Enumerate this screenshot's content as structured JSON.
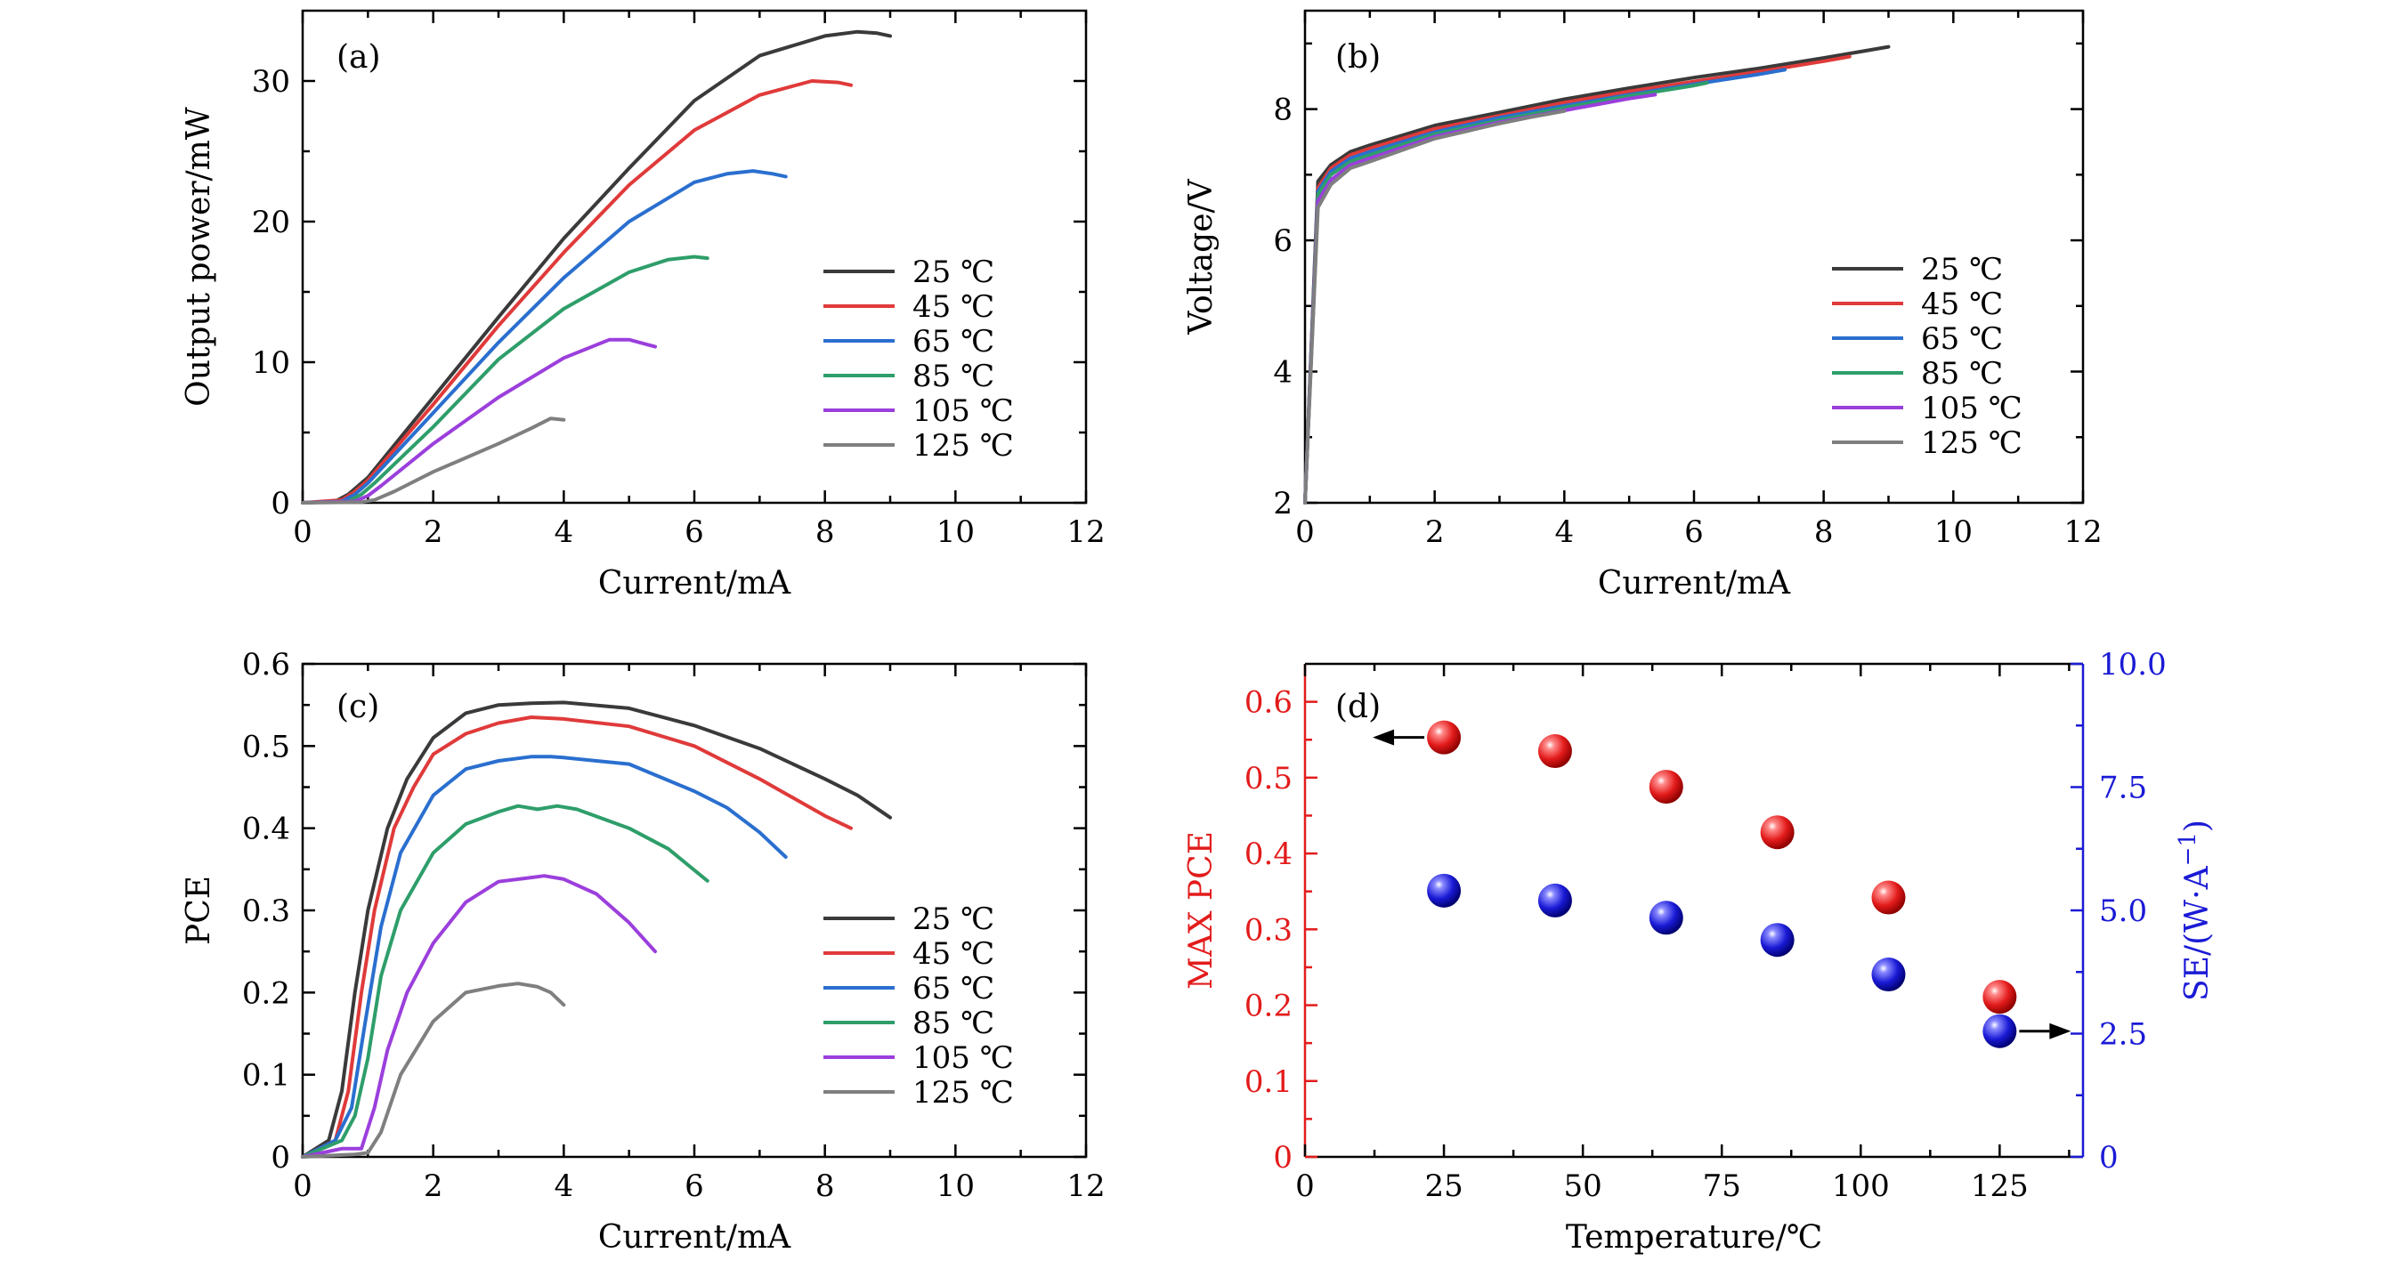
{
  "figure": {
    "legend_labels": [
      "25 ℃",
      "45 ℃",
      "65 ℃",
      "85 ℃",
      "105 ℃",
      "125 ℃"
    ],
    "colors": [
      "#3a3a3a",
      "#e03a3a",
      "#2a6fcf",
      "#2e9e6a",
      "#9b3fdc",
      "#7f7f7f"
    ],
    "red": "#e31b1b",
    "blue": "#1a1ad6"
  },
  "chart_data": [
    {
      "panel": "(a)",
      "type": "line",
      "xlabel": "Current/mA",
      "ylabel": "Output power/mW",
      "xlim": [
        0,
        12
      ],
      "ylim": [
        0,
        35
      ],
      "xticks": [
        0,
        2,
        4,
        6,
        8,
        10,
        12
      ],
      "yticks": [
        0,
        10,
        20,
        30
      ],
      "legend": "center-right",
      "series": [
        {
          "name": "25 ℃",
          "x": [
            0,
            0.5,
            0.7,
            1,
            2,
            3,
            4,
            5,
            6,
            7,
            8,
            8.5,
            8.8,
            9
          ],
          "y": [
            0,
            0.1,
            0.6,
            1.8,
            7.5,
            13.2,
            18.8,
            23.8,
            28.6,
            31.8,
            33.2,
            33.5,
            33.4,
            33.2
          ]
        },
        {
          "name": "45 ℃",
          "x": [
            0,
            0.6,
            0.8,
            1,
            2,
            3,
            4,
            5,
            6,
            7,
            7.8,
            8.2,
            8.4
          ],
          "y": [
            0,
            0.2,
            0.8,
            1.6,
            7.0,
            12.6,
            17.8,
            22.6,
            26.5,
            29.0,
            30.0,
            29.9,
            29.7
          ]
        },
        {
          "name": "65 ℃",
          "x": [
            0,
            0.6,
            0.8,
            1,
            2,
            3,
            4,
            5,
            6,
            6.5,
            6.9,
            7.2,
            7.4
          ],
          "y": [
            0,
            0.1,
            0.6,
            1.4,
            6.4,
            11.4,
            16.0,
            20.0,
            22.8,
            23.4,
            23.6,
            23.4,
            23.2
          ]
        },
        {
          "name": "85 ℃",
          "x": [
            0,
            0.7,
            0.9,
            1.1,
            2,
            3,
            4,
            5,
            5.6,
            6,
            6.2
          ],
          "y": [
            0,
            0.1,
            0.6,
            1.4,
            5.4,
            10.2,
            13.8,
            16.4,
            17.3,
            17.5,
            17.4
          ]
        },
        {
          "name": "105 ℃",
          "x": [
            0,
            0.8,
            1.0,
            1.2,
            2,
            3,
            4,
            4.7,
            5.0,
            5.4
          ],
          "y": [
            0,
            0.1,
            0.5,
            1.2,
            4.2,
            7.5,
            10.3,
            11.6,
            11.6,
            11.1
          ]
        },
        {
          "name": "125 ℃",
          "x": [
            0,
            0.9,
            1.1,
            1.4,
            2,
            3,
            3.5,
            3.8,
            4.0
          ],
          "y": [
            0,
            0.05,
            0.2,
            0.8,
            2.2,
            4.2,
            5.3,
            6.0,
            5.9
          ]
        }
      ]
    },
    {
      "panel": "(b)",
      "type": "line",
      "xlabel": "Current/mA",
      "ylabel": "Voltage/V",
      "xlim": [
        0,
        12
      ],
      "ylim": [
        2,
        9.5
      ],
      "xticks": [
        0,
        2,
        4,
        6,
        8,
        10,
        12
      ],
      "yticks": [
        2,
        4,
        6,
        8
      ],
      "legend": "bottom-right",
      "series": [
        {
          "name": "25 ℃",
          "x": [
            0,
            0.2,
            0.4,
            0.7,
            1,
            2,
            3,
            4,
            5,
            6,
            7,
            8,
            9
          ],
          "y": [
            2.0,
            6.9,
            7.15,
            7.35,
            7.45,
            7.75,
            7.95,
            8.15,
            8.32,
            8.48,
            8.62,
            8.78,
            8.95
          ]
        },
        {
          "name": "45 ℃",
          "x": [
            0,
            0.2,
            0.4,
            0.7,
            1,
            2,
            3,
            4,
            5,
            6,
            7,
            8,
            8.4
          ],
          "y": [
            2.0,
            6.8,
            7.1,
            7.3,
            7.4,
            7.7,
            7.9,
            8.1,
            8.27,
            8.42,
            8.57,
            8.73,
            8.8
          ]
        },
        {
          "name": "65 ℃",
          "x": [
            0,
            0.2,
            0.4,
            0.7,
            1,
            2,
            3,
            4,
            5,
            6,
            7,
            7.4
          ],
          "y": [
            2.0,
            6.75,
            7.05,
            7.25,
            7.35,
            7.65,
            7.87,
            8.05,
            8.22,
            8.38,
            8.53,
            8.6
          ]
        },
        {
          "name": "85 ℃",
          "x": [
            0,
            0.2,
            0.4,
            0.7,
            1,
            2,
            3,
            4,
            5,
            6,
            6.2
          ],
          "y": [
            2.0,
            6.7,
            7.0,
            7.2,
            7.3,
            7.62,
            7.83,
            8.02,
            8.2,
            8.36,
            8.4
          ]
        },
        {
          "name": "105 ℃",
          "x": [
            0,
            0.2,
            0.4,
            0.7,
            1,
            2,
            3,
            4,
            5,
            5.4
          ],
          "y": [
            2.0,
            6.6,
            6.92,
            7.15,
            7.25,
            7.58,
            7.8,
            7.98,
            8.16,
            8.22
          ]
        },
        {
          "name": "125 ℃",
          "x": [
            0,
            0.2,
            0.4,
            0.7,
            1,
            2,
            3,
            3.5,
            4.0
          ],
          "y": [
            2.0,
            6.5,
            6.85,
            7.1,
            7.2,
            7.55,
            7.78,
            7.88,
            7.97
          ]
        }
      ]
    },
    {
      "panel": "(c)",
      "type": "line",
      "xlabel": "Current/mA",
      "ylabel": "PCE",
      "xlim": [
        0,
        12
      ],
      "ylim": [
        0,
        0.6
      ],
      "xticks": [
        0,
        2,
        4,
        6,
        8,
        10,
        12
      ],
      "yticks": [
        0,
        0.1,
        0.2,
        0.3,
        0.4,
        0.5,
        0.6
      ],
      "legend": "bottom-right",
      "series": [
        {
          "name": "25 ℃",
          "x": [
            0,
            0.4,
            0.6,
            0.8,
            1.0,
            1.3,
            1.6,
            2.0,
            2.5,
            3.0,
            3.5,
            4.0,
            5.0,
            6.0,
            7.0,
            8.0,
            8.5,
            9.0
          ],
          "y": [
            0,
            0.02,
            0.08,
            0.2,
            0.3,
            0.4,
            0.46,
            0.51,
            0.54,
            0.55,
            0.552,
            0.553,
            0.546,
            0.525,
            0.497,
            0.46,
            0.44,
            0.413
          ]
        },
        {
          "name": "45 ℃",
          "x": [
            0,
            0.5,
            0.7,
            0.9,
            1.1,
            1.4,
            1.7,
            2.0,
            2.5,
            3.0,
            3.5,
            4.0,
            5.0,
            6.0,
            7.0,
            8.0,
            8.4
          ],
          "y": [
            0,
            0.02,
            0.08,
            0.2,
            0.3,
            0.4,
            0.45,
            0.49,
            0.515,
            0.528,
            0.535,
            0.533,
            0.524,
            0.5,
            0.46,
            0.415,
            0.4
          ]
        },
        {
          "name": "65 ℃",
          "x": [
            0,
            0.5,
            0.75,
            0.95,
            1.2,
            1.5,
            2.0,
            2.5,
            3.0,
            3.5,
            3.8,
            4.0,
            5.0,
            6.0,
            6.5,
            7.0,
            7.4
          ],
          "y": [
            0,
            0.02,
            0.06,
            0.16,
            0.28,
            0.37,
            0.44,
            0.472,
            0.482,
            0.487,
            0.487,
            0.486,
            0.478,
            0.445,
            0.425,
            0.395,
            0.365
          ]
        },
        {
          "name": "85 ℃",
          "x": [
            0,
            0.6,
            0.8,
            1.0,
            1.2,
            1.5,
            2.0,
            2.5,
            3.0,
            3.3,
            3.6,
            3.9,
            4.2,
            5.0,
            5.6,
            6.2
          ],
          "y": [
            0,
            0.02,
            0.05,
            0.12,
            0.22,
            0.3,
            0.37,
            0.405,
            0.42,
            0.427,
            0.423,
            0.427,
            0.423,
            0.4,
            0.375,
            0.336
          ]
        },
        {
          "name": "105 ℃",
          "x": [
            0,
            0.6,
            0.9,
            1.1,
            1.3,
            1.6,
            2.0,
            2.5,
            3.0,
            3.5,
            3.7,
            4.0,
            4.5,
            5.0,
            5.4
          ],
          "y": [
            0,
            0.01,
            0.01,
            0.06,
            0.13,
            0.2,
            0.26,
            0.31,
            0.335,
            0.34,
            0.342,
            0.338,
            0.32,
            0.285,
            0.25
          ]
        },
        {
          "name": "125 ℃",
          "x": [
            0,
            0.8,
            1.0,
            1.2,
            1.5,
            2.0,
            2.5,
            3.0,
            3.3,
            3.6,
            3.8,
            4.0
          ],
          "y": [
            0,
            0.003,
            0.005,
            0.03,
            0.1,
            0.165,
            0.2,
            0.208,
            0.211,
            0.207,
            0.2,
            0.185
          ]
        }
      ]
    },
    {
      "panel": "(d)",
      "type": "scatter",
      "xlabel": "Temperature/℃",
      "ylabel_left": "MAX PCE",
      "ylabel_right_prefix": "SE/(W·A",
      "ylabel_right_exp": "−1",
      "ylabel_right_suffix": ")",
      "xlim": [
        0,
        140
      ],
      "ylim_left": [
        0,
        0.65
      ],
      "ylim_right": [
        0,
        10
      ],
      "xticks": [
        0,
        25,
        50,
        75,
        100,
        125
      ],
      "yticks_left": [
        0,
        0.1,
        0.2,
        0.3,
        0.4,
        0.5,
        0.6
      ],
      "yticks_right": [
        0,
        2.5,
        5.0,
        7.5,
        10.0
      ],
      "yticklabels_right": [
        "0",
        "2.5",
        "5.0",
        "7.5",
        "10.0"
      ],
      "x": [
        25,
        45,
        65,
        85,
        105,
        125
      ],
      "max_pce": [
        0.553,
        0.535,
        0.488,
        0.428,
        0.342,
        0.211
      ],
      "se": [
        5.4,
        5.2,
        4.85,
        4.4,
        3.7,
        2.55
      ]
    }
  ]
}
